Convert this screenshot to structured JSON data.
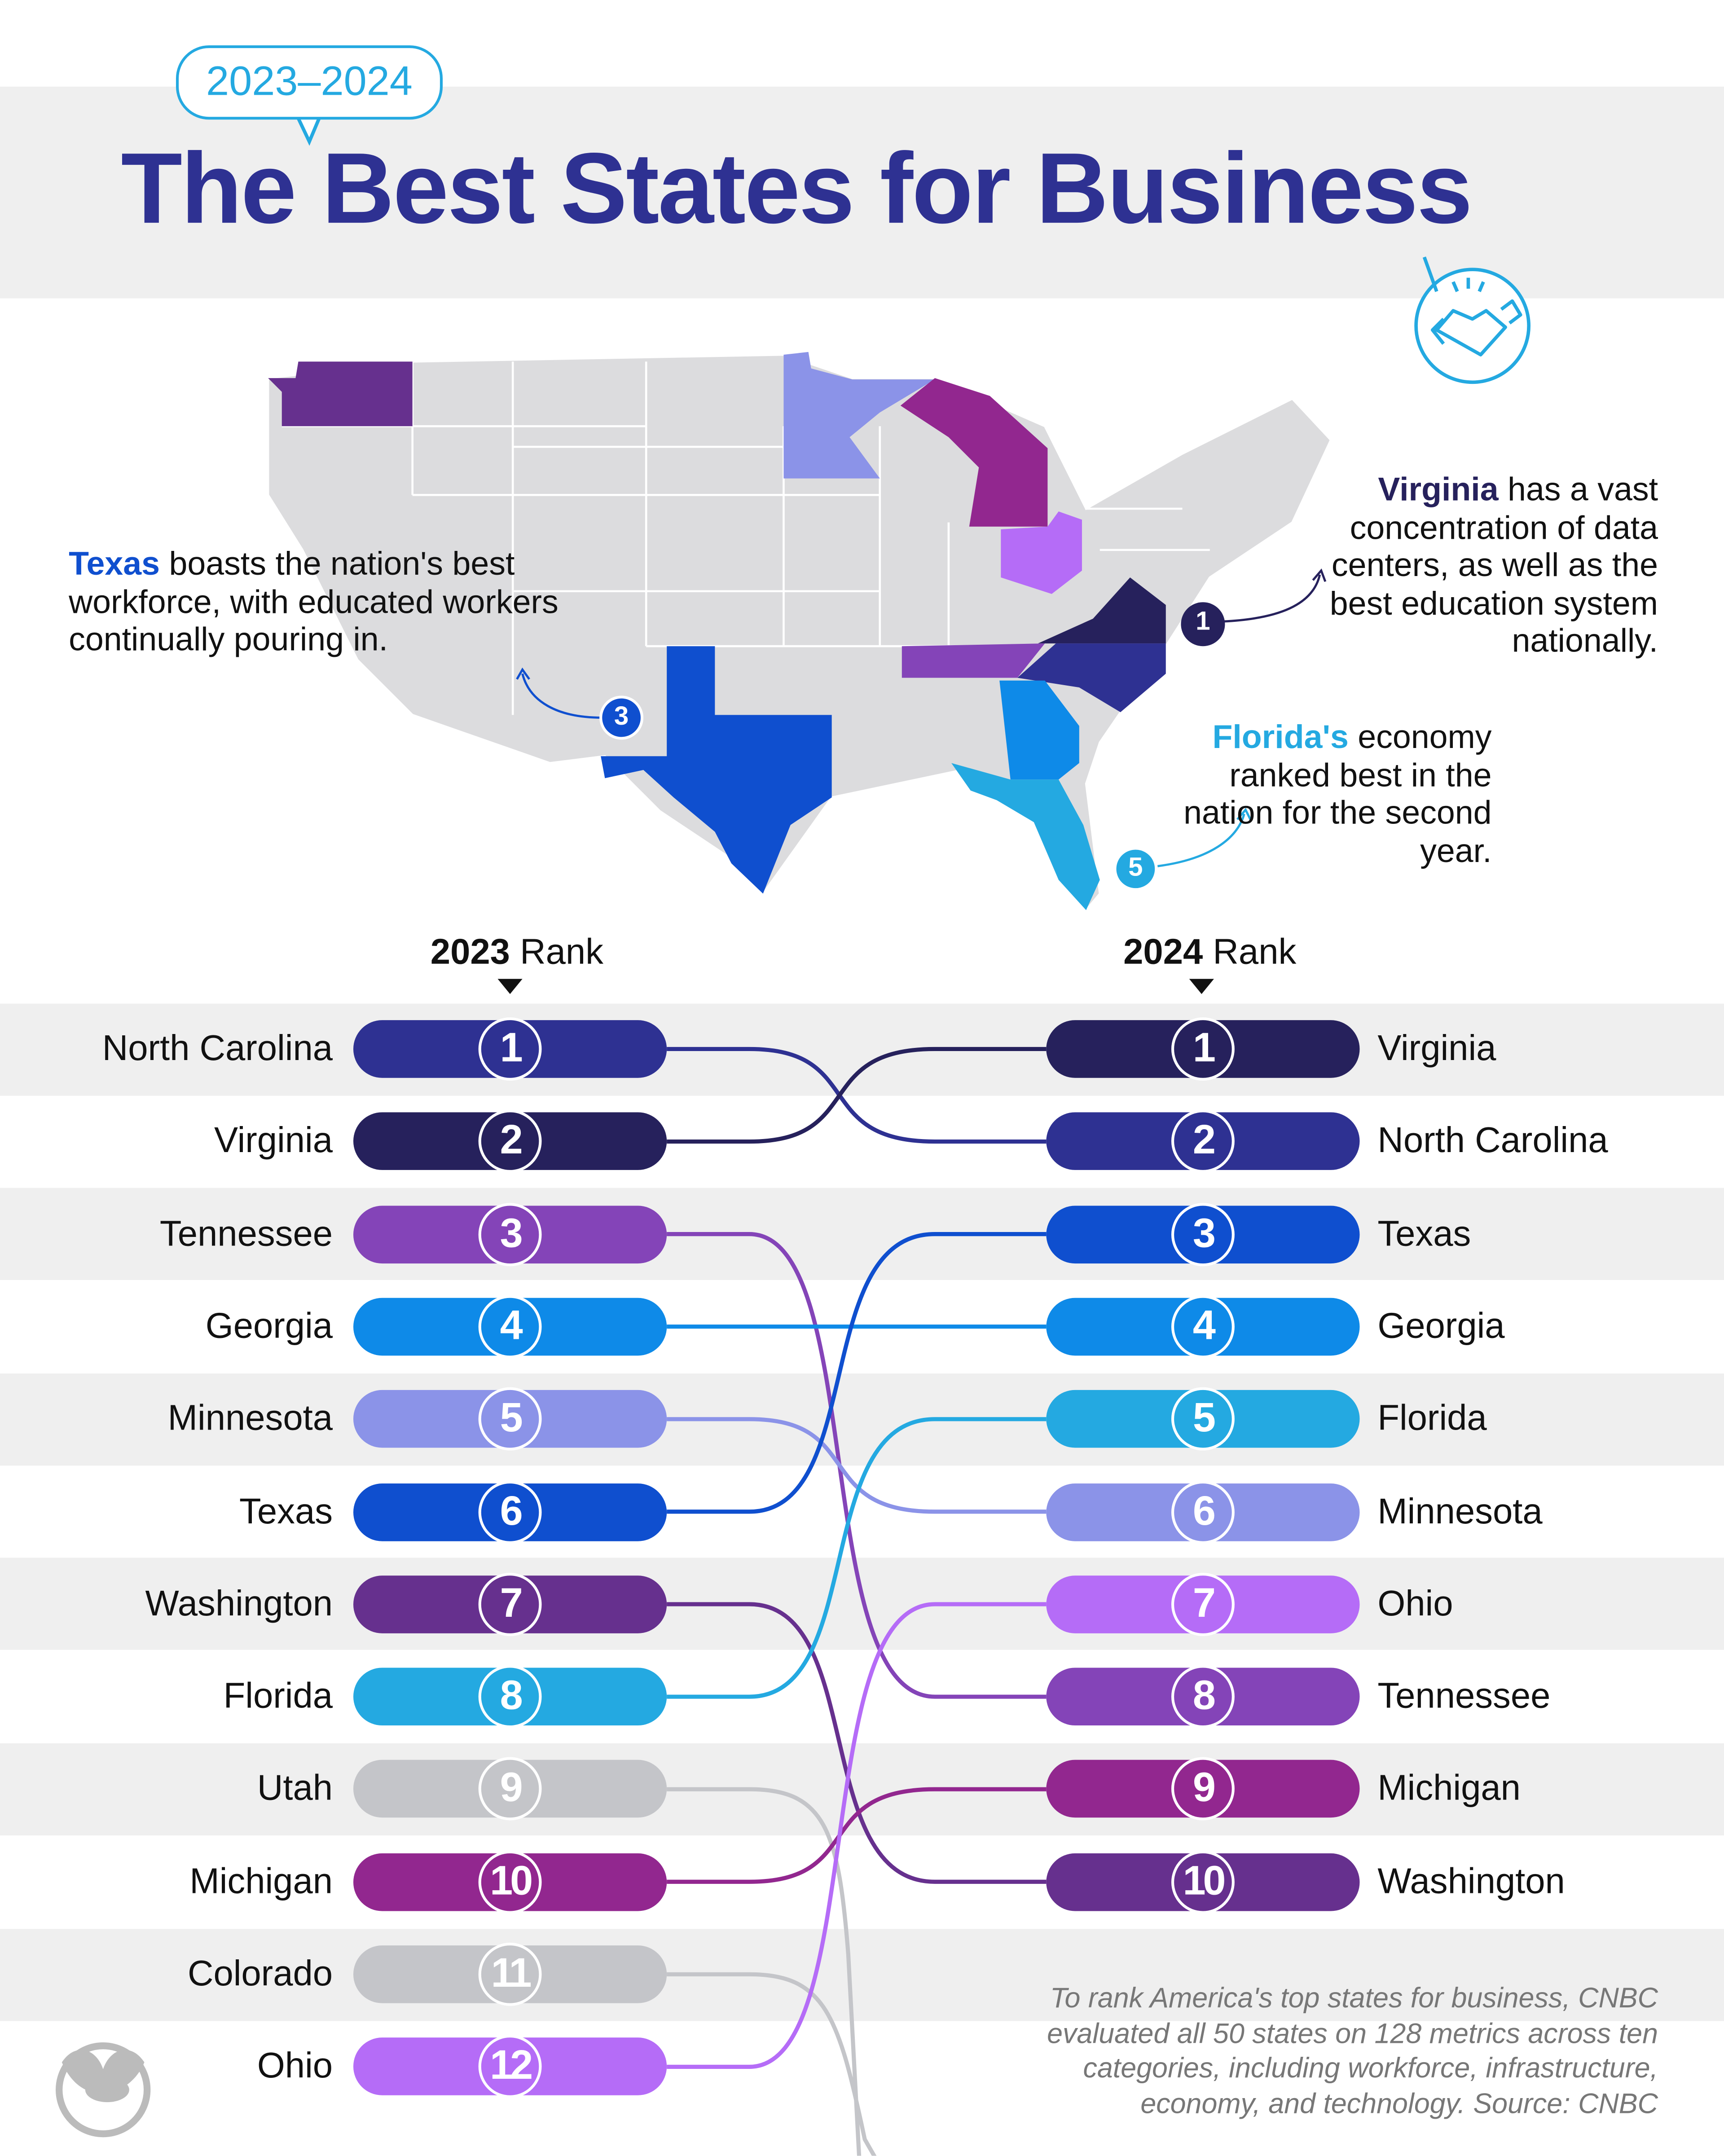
{
  "header": {
    "year_badge": "2023–2024",
    "title": "The Best States for Business"
  },
  "annotations": {
    "texas": {
      "lead": "Texas",
      "text": " boasts the nation's best workforce, with educated workers continually pouring in.",
      "marker": "3",
      "color": "#0f4fcf"
    },
    "virginia": {
      "lead": "Virginia",
      "text": " has a vast concentration of data centers, as well as the best education system nationally.",
      "marker": "1",
      "color": "#26215c"
    },
    "florida": {
      "lead": "Florida's",
      "text": " economy ranked best in the nation for the second year.",
      "marker": "5",
      "color": "#24a9e1"
    }
  },
  "icons": {
    "handshake": "handshake-icon",
    "logo": "visual-capitalist-logo"
  },
  "chart_data": {
    "type": "bump",
    "columns": [
      {
        "year": "2023",
        "label": "Rank"
      },
      {
        "year": "2024",
        "label": "Rank"
      }
    ],
    "rank_2023": [
      {
        "rank": "1",
        "state": "North Carolina",
        "color": "#2e3192"
      },
      {
        "rank": "2",
        "state": "Virginia",
        "color": "#26215c"
      },
      {
        "rank": "3",
        "state": "Tennessee",
        "color": "#8444b8"
      },
      {
        "rank": "4",
        "state": "Georgia",
        "color": "#0e8ae8"
      },
      {
        "rank": "5",
        "state": "Minnesota",
        "color": "#8b93e8"
      },
      {
        "rank": "6",
        "state": "Texas",
        "color": "#0f4fcf"
      },
      {
        "rank": "7",
        "state": "Washington",
        "color": "#66308e"
      },
      {
        "rank": "8",
        "state": "Florida",
        "color": "#24a9e1"
      },
      {
        "rank": "9",
        "state": "Utah",
        "color": "#c4c5c9"
      },
      {
        "rank": "10",
        "state": "Michigan",
        "color": "#92278f"
      },
      {
        "rank": "11",
        "state": "Colorado",
        "color": "#c4c5c9"
      },
      {
        "rank": "12",
        "state": "Ohio",
        "color": "#b56cf7"
      }
    ],
    "rank_2024": [
      {
        "rank": "1",
        "state": "Virginia",
        "color": "#26215c"
      },
      {
        "rank": "2",
        "state": "North Carolina",
        "color": "#2e3192"
      },
      {
        "rank": "3",
        "state": "Texas",
        "color": "#0f4fcf"
      },
      {
        "rank": "4",
        "state": "Georgia",
        "color": "#0e8ae8"
      },
      {
        "rank": "5",
        "state": "Florida",
        "color": "#24a9e1"
      },
      {
        "rank": "6",
        "state": "Minnesota",
        "color": "#8b93e8"
      },
      {
        "rank": "7",
        "state": "Ohio",
        "color": "#b56cf7"
      },
      {
        "rank": "8",
        "state": "Tennessee",
        "color": "#8444b8"
      },
      {
        "rank": "9",
        "state": "Michigan",
        "color": "#92278f"
      },
      {
        "rank": "10",
        "state": "Washington",
        "color": "#66308e"
      }
    ]
  },
  "footnote": "To rank America's top states for business, CNBC evaluated all 50 states on 128 metrics across ten categories, including workforce, infrastructure, economy, and technology. Source: CNBC"
}
